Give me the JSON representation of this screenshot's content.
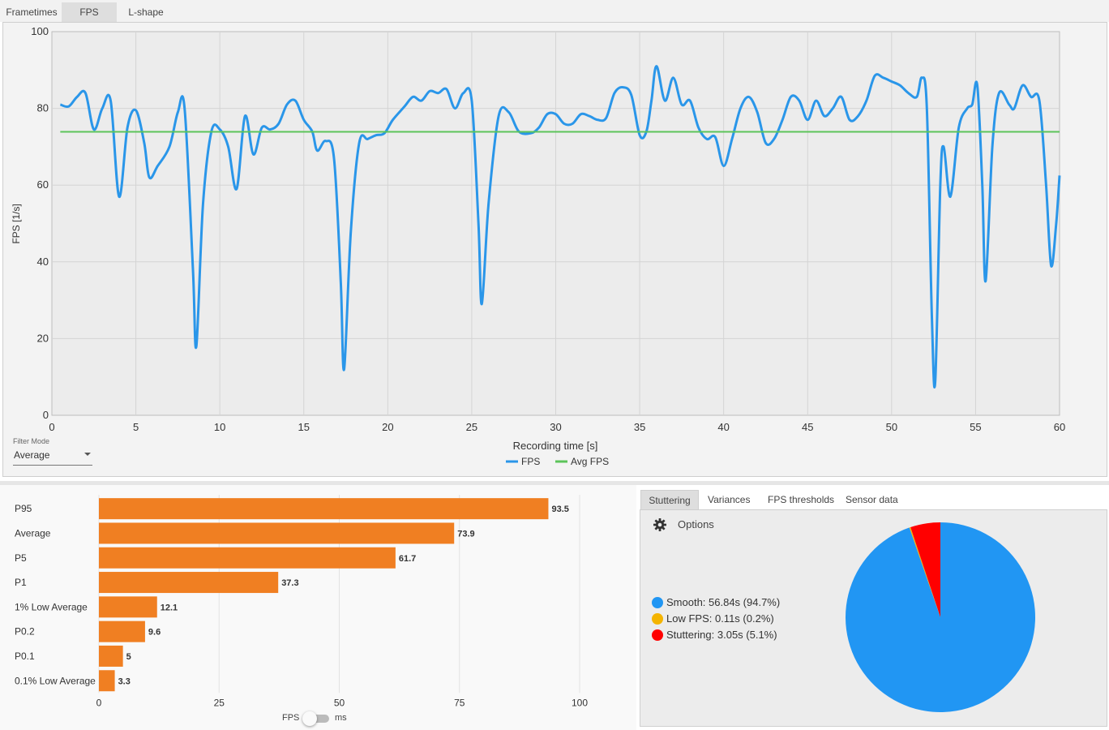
{
  "top_tabs": [
    {
      "label": "Frametimes"
    },
    {
      "label": "FPS"
    },
    {
      "label": "L-shape"
    }
  ],
  "filter": {
    "label": "Filter Mode",
    "value": "Average"
  },
  "colors": {
    "fps": "#2a96e9",
    "avg": "#5cc45a",
    "bar": "#f07f22",
    "smooth": "#2196f3",
    "low": "#f4b400",
    "stutter": "#ff0000"
  },
  "chart_data": [
    {
      "type": "line",
      "xlabel": "Recording time [s]",
      "ylabel": "FPS [1/s]",
      "xlim": [
        0,
        60
      ],
      "ylim": [
        0,
        100
      ],
      "xticks": [
        0,
        5,
        10,
        15,
        20,
        25,
        30,
        35,
        40,
        45,
        50,
        55,
        60
      ],
      "yticks": [
        0,
        20,
        40,
        60,
        80,
        100
      ],
      "grid": true,
      "legend_position": "bottom",
      "series": [
        {
          "name": "FPS",
          "color": "#2a96e9",
          "points": [
            [
              0.5,
              81
            ],
            [
              1,
              80.5
            ],
            [
              1.5,
              83
            ],
            [
              2,
              84
            ],
            [
              2.5,
              74.5
            ],
            [
              3,
              80
            ],
            [
              3.5,
              82
            ],
            [
              4,
              57
            ],
            [
              4.5,
              75
            ],
            [
              5,
              79.5
            ],
            [
              5.5,
              71
            ],
            [
              5.8,
              62
            ],
            [
              6.3,
              65
            ],
            [
              7,
              70
            ],
            [
              7.5,
              79
            ],
            [
              7.9,
              80
            ],
            [
              8.4,
              38
            ],
            [
              8.6,
              18
            ],
            [
              9,
              55
            ],
            [
              9.5,
              74
            ],
            [
              10,
              74.5
            ],
            [
              10.5,
              70
            ],
            [
              11,
              59
            ],
            [
              11.5,
              78
            ],
            [
              12,
              68
            ],
            [
              12.5,
              75
            ],
            [
              13,
              74.5
            ],
            [
              13.5,
              76
            ],
            [
              14,
              81
            ],
            [
              14.5,
              82
            ],
            [
              15,
              77
            ],
            [
              15.5,
              74
            ],
            [
              15.8,
              69
            ],
            [
              16.3,
              71.5
            ],
            [
              16.8,
              67
            ],
            [
              17.2,
              35
            ],
            [
              17.4,
              12
            ],
            [
              17.8,
              48
            ],
            [
              18.3,
              71
            ],
            [
              18.8,
              72
            ],
            [
              19.3,
              73
            ],
            [
              19.8,
              73.5
            ],
            [
              20.3,
              77
            ],
            [
              21,
              80.5
            ],
            [
              21.5,
              83
            ],
            [
              22,
              82
            ],
            [
              22.5,
              84.5
            ],
            [
              23,
              84
            ],
            [
              23.5,
              85
            ],
            [
              24,
              80
            ],
            [
              24.5,
              84
            ],
            [
              25,
              82
            ],
            [
              25.4,
              50
            ],
            [
              25.6,
              29
            ],
            [
              26,
              55
            ],
            [
              26.6,
              78
            ],
            [
              27.2,
              79
            ],
            [
              27.8,
              74
            ],
            [
              28.5,
              73.5
            ],
            [
              29,
              75
            ],
            [
              29.5,
              78.5
            ],
            [
              30,
              78.5
            ],
            [
              30.5,
              76
            ],
            [
              31,
              76
            ],
            [
              31.5,
              78.5
            ],
            [
              32,
              78
            ],
            [
              32.5,
              77
            ],
            [
              33,
              77.5
            ],
            [
              33.5,
              84
            ],
            [
              34,
              85.5
            ],
            [
              34.5,
              83.5
            ],
            [
              35,
              73
            ],
            [
              35.4,
              74
            ],
            [
              35.7,
              82
            ],
            [
              36,
              91
            ],
            [
              36.5,
              82
            ],
            [
              37,
              88
            ],
            [
              37.5,
              81
            ],
            [
              38,
              82
            ],
            [
              38.5,
              75
            ],
            [
              39,
              72
            ],
            [
              39.5,
              72.5
            ],
            [
              40,
              65
            ],
            [
              40.5,
              72
            ],
            [
              41,
              80
            ],
            [
              41.5,
              83
            ],
            [
              42,
              79
            ],
            [
              42.5,
              71
            ],
            [
              43,
              72
            ],
            [
              43.5,
              77
            ],
            [
              44,
              83
            ],
            [
              44.5,
              82
            ],
            [
              45,
              77
            ],
            [
              45.5,
              82
            ],
            [
              46,
              78
            ],
            [
              46.5,
              80
            ],
            [
              47,
              83
            ],
            [
              47.5,
              77
            ],
            [
              48,
              78
            ],
            [
              48.5,
              82
            ],
            [
              49,
              88.5
            ],
            [
              49.5,
              88
            ],
            [
              50,
              87
            ],
            [
              50.5,
              86
            ],
            [
              51,
              84
            ],
            [
              51.5,
              83
            ],
            [
              51.8,
              88
            ],
            [
              52.1,
              80
            ],
            [
              52.4,
              25
            ],
            [
              52.6,
              9
            ],
            [
              52.9,
              60
            ],
            [
              53.1,
              70
            ],
            [
              53.5,
              57
            ],
            [
              54,
              75
            ],
            [
              54.5,
              80
            ],
            [
              54.8,
              81
            ],
            [
              55.1,
              86
            ],
            [
              55.4,
              60
            ],
            [
              55.6,
              35
            ],
            [
              56,
              70
            ],
            [
              56.4,
              84
            ],
            [
              57,
              81
            ],
            [
              57.3,
              80
            ],
            [
              57.8,
              86
            ],
            [
              58.3,
              83
            ],
            [
              58.8,
              82
            ],
            [
              59.2,
              60
            ],
            [
              59.5,
              39
            ],
            [
              59.8,
              50
            ],
            [
              60,
              62.5
            ]
          ]
        },
        {
          "name": "Avg FPS",
          "color": "#5cc45a",
          "points": [
            [
              0.5,
              73.9
            ],
            [
              60,
              73.9
            ]
          ]
        }
      ]
    },
    {
      "type": "bar",
      "orientation": "horizontal",
      "categories": [
        "P95",
        "Average",
        "P5",
        "P1",
        "1% Low Average",
        "P0.2",
        "P0.1",
        "0.1% Low Average"
      ],
      "values": [
        93.5,
        73.9,
        61.7,
        37.3,
        12.1,
        9.6,
        5,
        3.3
      ],
      "value_labels": [
        "93.5",
        "73.9",
        "61.7",
        "37.3",
        "12.1",
        "9.6",
        "5",
        "3.3"
      ],
      "xlim": [
        0,
        100
      ],
      "xticks": [
        0,
        25,
        50,
        75,
        100
      ],
      "grid": true,
      "color": "#f07f22"
    },
    {
      "type": "pie",
      "slices": [
        {
          "label": "Smooth",
          "value": 94.7,
          "color": "#2196f3"
        },
        {
          "label": "Low FPS",
          "value": 0.2,
          "color": "#f4b400"
        },
        {
          "label": "Stuttering",
          "value": 5.1,
          "color": "#ff0000"
        }
      ]
    }
  ],
  "toggle": {
    "left": "FPS",
    "right": "ms"
  },
  "right_tabs": [
    {
      "label": "Stuttering"
    },
    {
      "label": "Variances"
    },
    {
      "label": "FPS thresholds"
    },
    {
      "label": "Sensor data"
    }
  ],
  "options_label": "Options",
  "stutter_legend": [
    {
      "text": "Smooth:  56.84s (94.7%)"
    },
    {
      "text": "Low FPS:  0.11s (0.2%)"
    },
    {
      "text": "Stuttering:  3.05s (5.1%)"
    }
  ]
}
